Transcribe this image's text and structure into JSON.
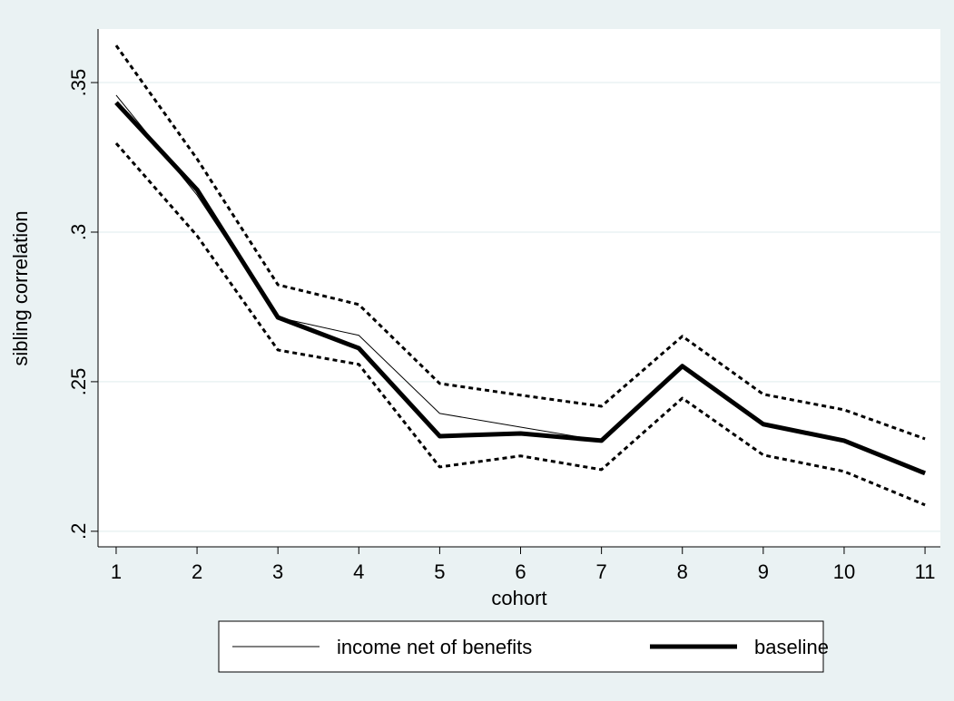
{
  "chart_data": {
    "type": "line",
    "x_label": "cohort",
    "y_label": "sibling correlation",
    "x": [
      1,
      2,
      3,
      4,
      5,
      6,
      7,
      8,
      9,
      10,
      11
    ],
    "xlim": [
      0.776,
      11.19
    ],
    "xticks": [
      1,
      2,
      3,
      4,
      5,
      6,
      7,
      8,
      9,
      10,
      11
    ],
    "ylim": [
      0.1948,
      0.3679
    ],
    "yticks": [
      {
        "value": 0.2,
        "label": ".2"
      },
      {
        "value": 0.25,
        "label": ".25"
      },
      {
        "value": 0.3,
        "label": ".3"
      },
      {
        "value": 0.35,
        "label": ".35"
      }
    ],
    "grid": true,
    "legend": "bottom",
    "series": [
      {
        "name": "income net of benefits",
        "color": "#000000",
        "width": 1,
        "values": [
          0.3458,
          0.3124,
          0.2715,
          0.2655,
          0.2394,
          0.2348,
          0.2303,
          0.2552,
          0.2358,
          0.2303,
          0.2194
        ]
      },
      {
        "name": "baseline",
        "color": "#000000",
        "width": 5,
        "values": [
          0.3433,
          0.3142,
          0.2715,
          0.2612,
          0.2318,
          0.2327,
          0.2303,
          0.2552,
          0.2358,
          0.2303,
          0.2194
        ]
      },
      {
        "color": "#000000",
        "width": 3,
        "dash": true,
        "values": [
          0.3624,
          0.3245,
          0.2824,
          0.2758,
          0.2494,
          0.2455,
          0.2418,
          0.2652,
          0.2458,
          0.2406,
          0.2309
        ]
      },
      {
        "color": "#000000",
        "width": 3,
        "dash": true,
        "values": [
          0.3297,
          0.2988,
          0.2606,
          0.2558,
          0.2215,
          0.2252,
          0.2206,
          0.2445,
          0.2255,
          0.22,
          0.2088
        ]
      }
    ]
  }
}
